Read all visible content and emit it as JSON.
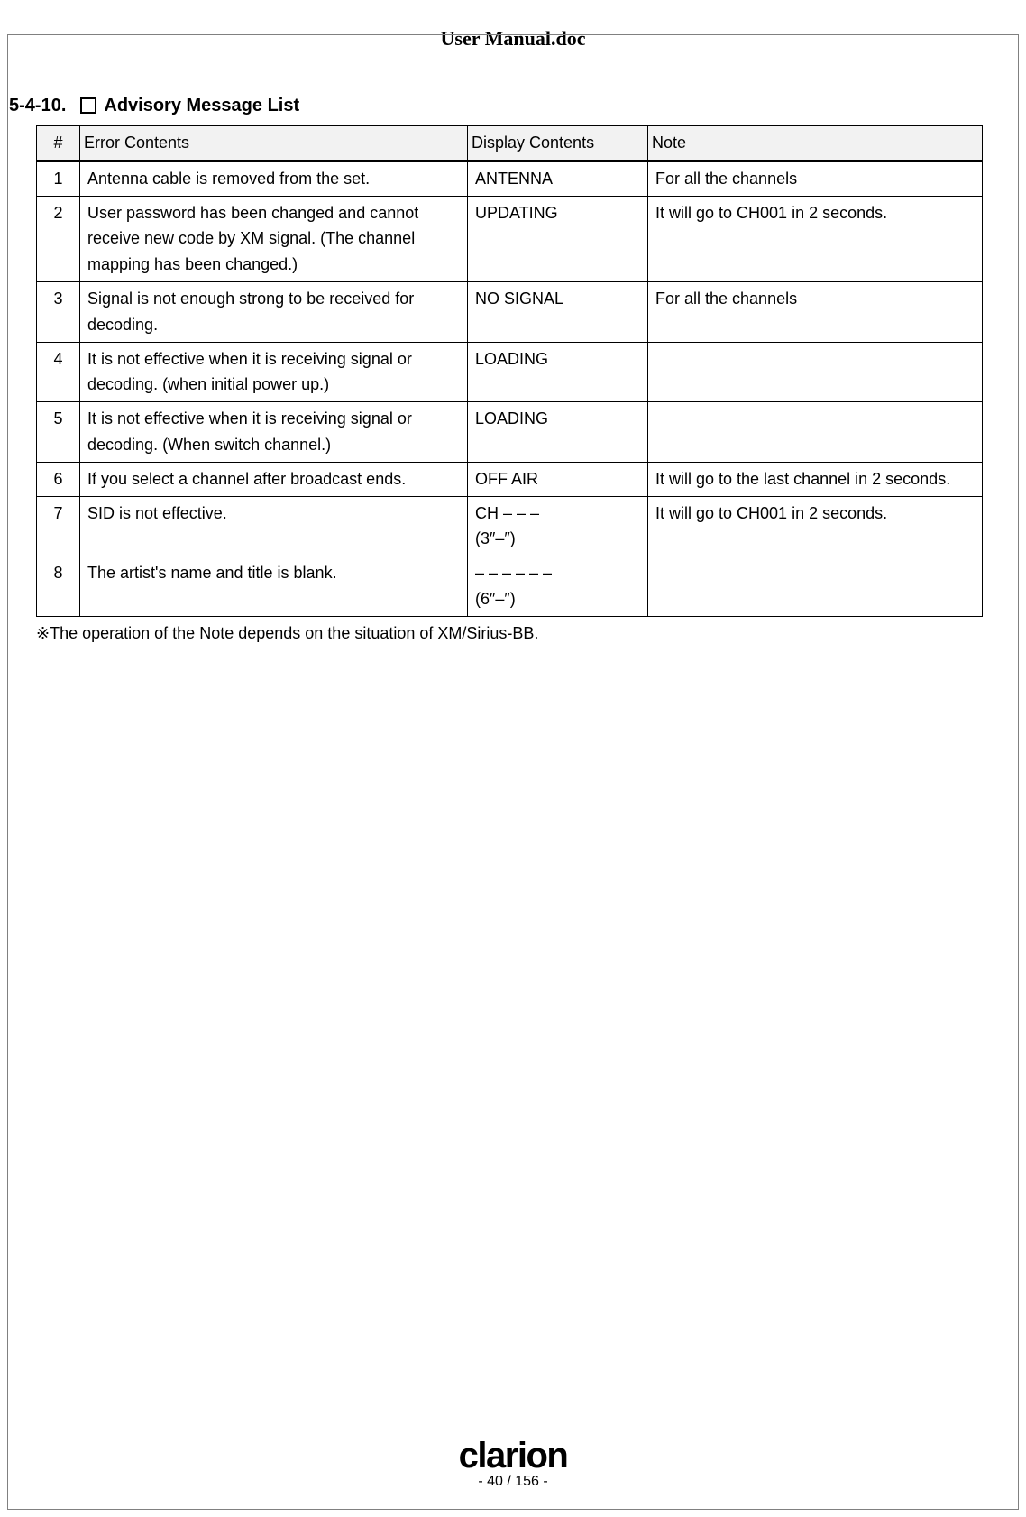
{
  "header": {
    "title": "User Manual.doc"
  },
  "section": {
    "number": "5-4-10.",
    "title": "Advisory Message List"
  },
  "table": {
    "columns": [
      "#",
      "Error Contents",
      "Display Contents",
      "Note"
    ],
    "rows": [
      {
        "num": "1",
        "error": "Antenna cable is removed from the set.",
        "display": "ANTENNA",
        "note": "For all the channels"
      },
      {
        "num": "2",
        "error": "User password has been changed and cannot receive new code by XM signal. (The channel mapping has been changed.)",
        "display": "UPDATING",
        "note": "It will go to CH001 in 2 seconds."
      },
      {
        "num": "3",
        "error": "Signal is not enough strong to be received for decoding.",
        "display": "NO SIGNAL",
        "note": "For all the channels"
      },
      {
        "num": "4",
        "error": "It is not effective when it is receiving signal or decoding. (when initial power up.)",
        "display": "LOADING",
        "note": ""
      },
      {
        "num": "5",
        "error": "It is not effective when it is receiving signal or decoding. (When switch channel.)",
        "display": "LOADING",
        "note": ""
      },
      {
        "num": "6",
        "error": "If you select a channel after broadcast ends.",
        "display": "OFF AIR",
        "note": "It will go to the last channel in 2 seconds."
      },
      {
        "num": "7",
        "error": "SID is not effective.",
        "display": "CH – – –\n(3″–″)",
        "note": "It will go to CH001 in 2 seconds."
      },
      {
        "num": "8",
        "error": "The artist's name and title is blank.",
        "display": "– – – – – –\n(6″–″)",
        "note": ""
      }
    ]
  },
  "footnote": "※The operation of the Note depends on the situation of XM/Sirius-BB.",
  "footer": {
    "brand": "clarion",
    "page": "- 40 / 156 -"
  },
  "colors": {
    "header_bg": "#f2f2f2",
    "border": "#000000",
    "page_border": "#808080",
    "background": "#ffffff"
  }
}
